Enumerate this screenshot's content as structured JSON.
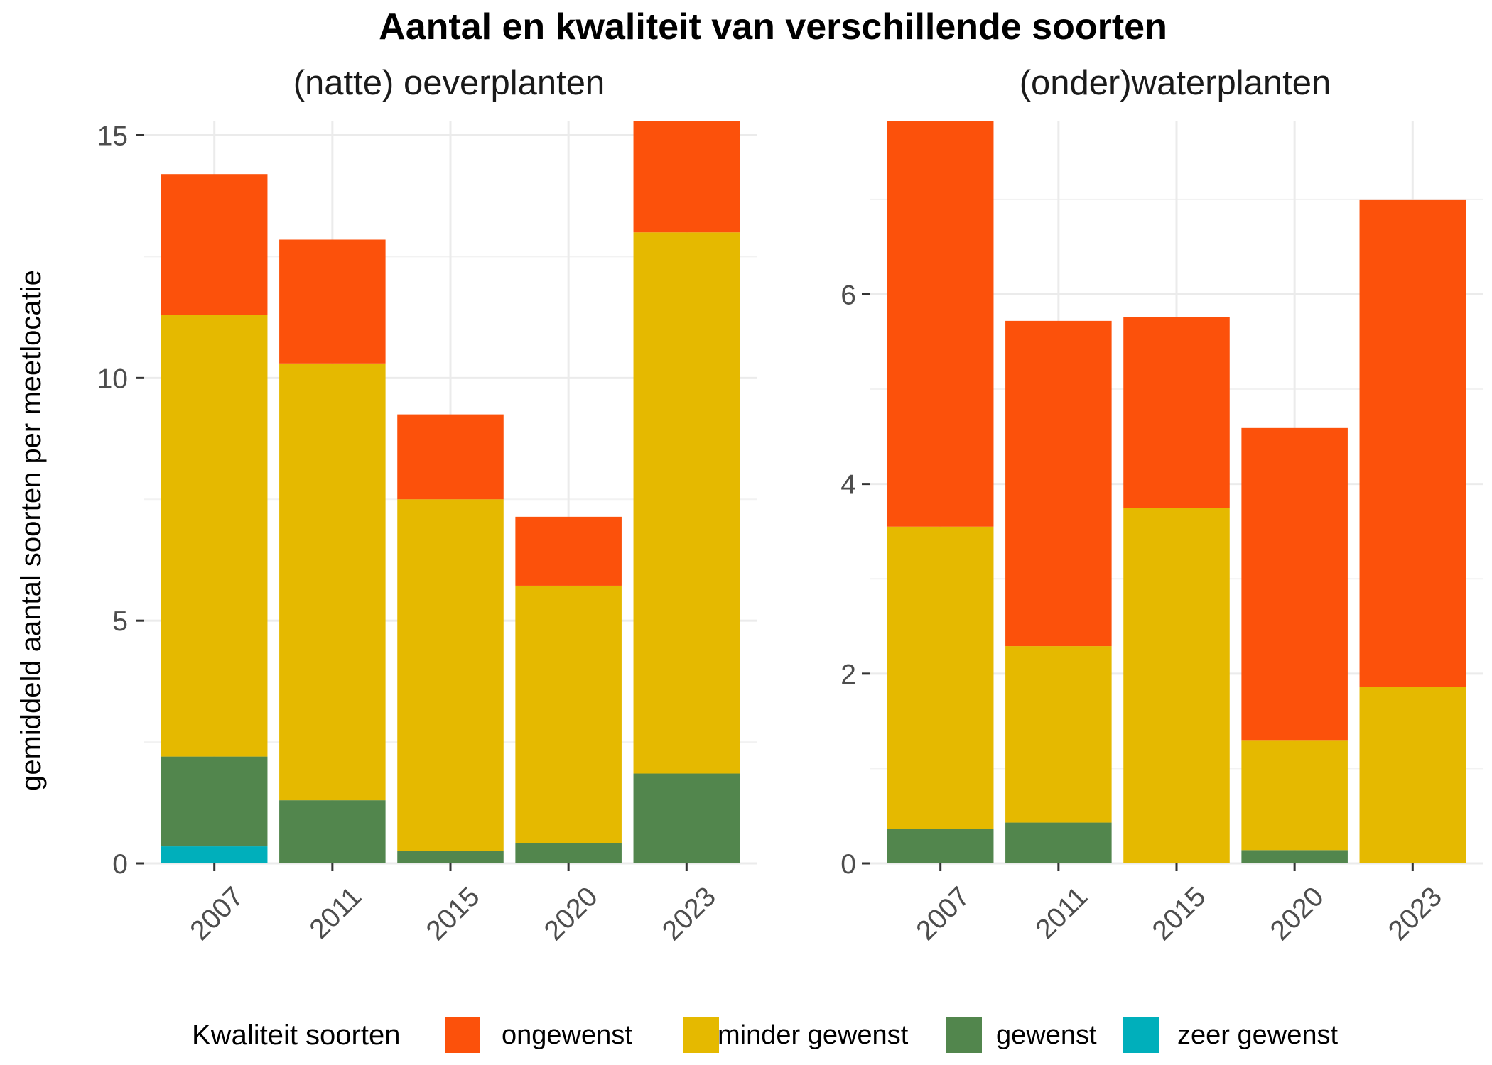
{
  "chart_data": {
    "type": "bar",
    "stacked": true,
    "title": "Aantal en kwaliteit van verschillende soorten",
    "ylabel": "gemiddeld aantal soorten per meetlocatie",
    "legend_title": "Kwaliteit soorten",
    "legend_position": "bottom",
    "series_colors": {
      "ongewenst": "#FC510B",
      "minder gewenst": "#E5B900",
      "gewenst": "#52864D",
      "zeer gewenst": "#00AFBB"
    },
    "legend": [
      "ongewenst",
      "minder gewenst",
      "gewenst",
      "zeer gewenst"
    ],
    "panels": [
      {
        "title": "(natte) oeverplanten",
        "categories": [
          "2007",
          "2011",
          "2015",
          "2020",
          "2023"
        ],
        "ylim": [
          0,
          15.3
        ],
        "yticks": [
          0,
          5,
          10,
          15
        ],
        "series": [
          {
            "name": "zeer gewenst",
            "values": [
              0.35,
              0,
              0,
              0,
              0
            ]
          },
          {
            "name": "gewenst",
            "values": [
              1.85,
              1.3,
              0.25,
              0.42,
              1.85
            ]
          },
          {
            "name": "minder gewenst",
            "values": [
              9.1,
              9.0,
              7.25,
              5.3,
              11.15
            ]
          },
          {
            "name": "ongewenst",
            "values": [
              2.9,
              2.55,
              1.75,
              1.42,
              2.3
            ]
          }
        ]
      },
      {
        "title": "(onder)waterplanten",
        "categories": [
          "2007",
          "2011",
          "2015",
          "2020",
          "2023"
        ],
        "ylim": [
          0,
          7.83
        ],
        "yticks": [
          0,
          2,
          4,
          6
        ],
        "series": [
          {
            "name": "zeer gewenst",
            "values": [
              0,
              0,
              0,
              0,
              0
            ]
          },
          {
            "name": "gewenst",
            "values": [
              0.36,
              0.43,
              0,
              0.14,
              0
            ]
          },
          {
            "name": "minder gewenst",
            "values": [
              3.19,
              1.86,
              3.75,
              1.16,
              1.86
            ]
          },
          {
            "name": "ongewenst",
            "values": [
              4.28,
              3.43,
              2.01,
              3.29,
              5.14
            ]
          }
        ]
      }
    ]
  }
}
